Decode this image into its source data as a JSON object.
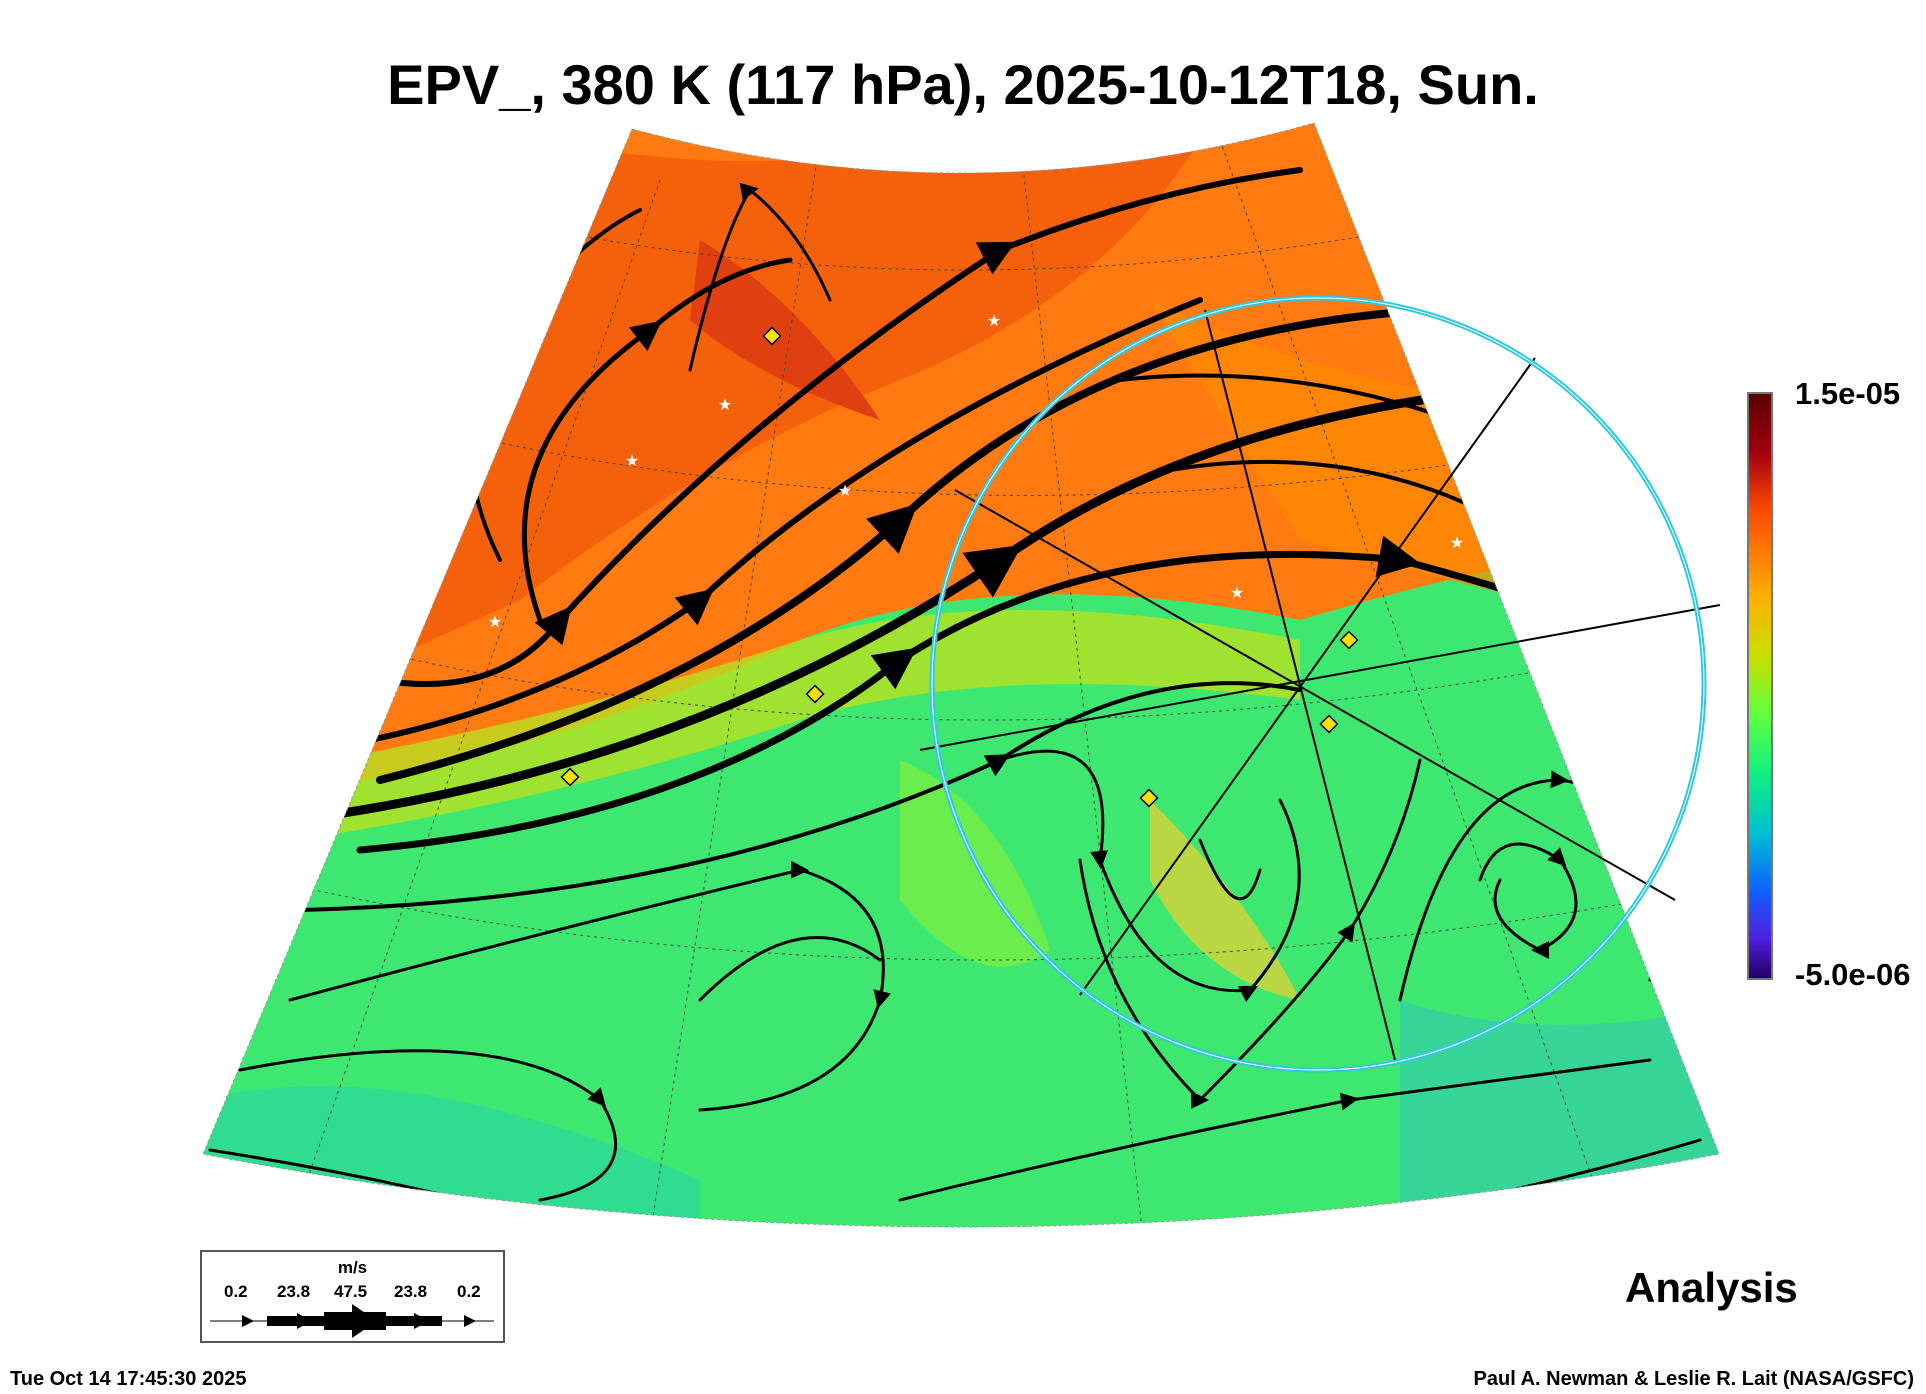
{
  "title": "EPV_, 380 K (117 hPa), 2025-10-12T18, Sun.",
  "colorbar": {
    "max_label": "1.5e-05",
    "min_label": "-5.0e-06",
    "colors": [
      "#5a0000",
      "#a00010",
      "#ff4a00",
      "#ffb000",
      "#c8e000",
      "#60ff40",
      "#10f080",
      "#00c0d0",
      "#1060ff",
      "#5020e0",
      "#200060"
    ]
  },
  "legend": {
    "unit": "m/s",
    "values": [
      "0.2",
      "23.8",
      "47.5",
      "23.8",
      "0.2"
    ]
  },
  "product_label": "Analysis",
  "footer": {
    "timestamp": "Tue Oct 14 17:45:30 2025",
    "credit": "Paul A. Newman & Leslie R. Lait (NASA/GSFC)"
  }
}
